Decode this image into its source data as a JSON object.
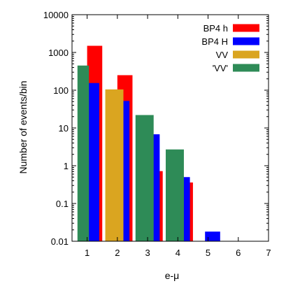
{
  "chart_data": {
    "type": "bar",
    "title": "",
    "xlabel": "e-μ",
    "ylabel": "Number of events/bin",
    "yscale": "log",
    "ylim": [
      0.01,
      10000
    ],
    "xlim": [
      0.5,
      7.0
    ],
    "x_ticks": [
      "1",
      "2",
      "3",
      "4",
      "5",
      "6",
      "7"
    ],
    "y_ticks": [
      "0.01",
      "0.1",
      "1",
      "10",
      "100",
      "1000",
      "10000"
    ],
    "legend_position": "top-right",
    "series": [
      {
        "name": "BP4 h",
        "color": "#ff0000",
        "bars": [
          {
            "x0": 1.0,
            "x1": 1.5,
            "value": 1500
          },
          {
            "x0": 2.0,
            "x1": 2.5,
            "value": 250
          },
          {
            "x0": 3.0,
            "x1": 3.5,
            "value": 0.72
          },
          {
            "x0": 4.0,
            "x1": 4.5,
            "value": 0.36
          }
        ]
      },
      {
        "name": "BP4 H",
        "color": "#0000ff",
        "bars": [
          {
            "x0": 1.0,
            "x1": 1.4,
            "value": 155
          },
          {
            "x0": 2.0,
            "x1": 2.4,
            "value": 52
          },
          {
            "x0": 3.0,
            "x1": 3.4,
            "value": 6.8
          },
          {
            "x0": 4.0,
            "x1": 4.4,
            "value": 0.5
          },
          {
            "x0": 4.9,
            "x1": 5.4,
            "value": 0.018
          }
        ]
      },
      {
        "name": "VV",
        "color": "#daa520",
        "bars": [
          {
            "x0": 1.6,
            "x1": 2.2,
            "value": 105
          }
        ]
      },
      {
        "name": "'VV'",
        "color": "#2e8b57",
        "bars": [
          {
            "x0": 0.68,
            "x1": 1.06,
            "value": 450
          },
          {
            "x0": 2.6,
            "x1": 3.2,
            "value": 22
          },
          {
            "x0": 3.6,
            "x1": 4.2,
            "value": 2.7
          }
        ]
      }
    ]
  }
}
